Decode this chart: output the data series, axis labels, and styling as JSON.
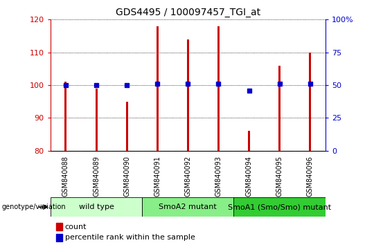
{
  "title": "GDS4495 / 100097457_TGI_at",
  "samples": [
    "GSM840088",
    "GSM840089",
    "GSM840090",
    "GSM840091",
    "GSM840092",
    "GSM840093",
    "GSM840094",
    "GSM840095",
    "GSM840096"
  ],
  "counts": [
    101,
    99,
    95,
    118,
    114,
    118,
    86,
    106,
    110
  ],
  "percentiles": [
    50,
    50,
    50,
    51,
    51,
    51,
    46,
    51,
    51
  ],
  "ylim_left": [
    80,
    120
  ],
  "ylim_right": [
    0,
    100
  ],
  "yticks_left": [
    80,
    90,
    100,
    110,
    120
  ],
  "yticks_right": [
    0,
    25,
    50,
    75,
    100
  ],
  "bar_color": "#cc0000",
  "dot_color": "#0000cc",
  "bar_width": 0.07,
  "groups": [
    {
      "label": "wild type",
      "start": 0,
      "end": 3,
      "color": "#ccffcc"
    },
    {
      "label": "SmoA2 mutant",
      "start": 3,
      "end": 6,
      "color": "#88ee88"
    },
    {
      "label": "SmoA1 (Smo/Smo) mutant",
      "start": 6,
      "end": 9,
      "color": "#33cc33"
    }
  ],
  "group_label": "genotype/variation",
  "legend_count": "count",
  "legend_percentile": "percentile rank within the sample",
  "bg_color": "#ffffff",
  "tick_label_area_color": "#bbbbbb",
  "left_axis_color": "#cc0000",
  "right_axis_color": "#0000cc",
  "title_fontsize": 10,
  "sample_fontsize": 7,
  "group_fontsize": 8,
  "legend_fontsize": 8
}
